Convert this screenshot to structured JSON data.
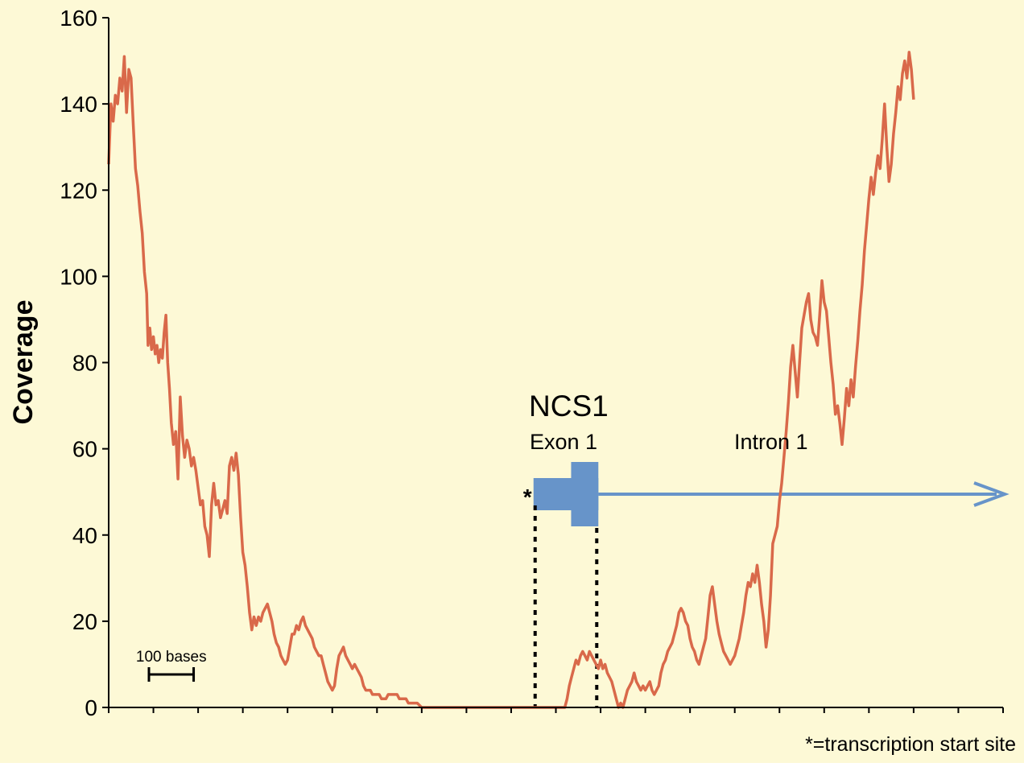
{
  "colors": {
    "background": "#fdf9d6",
    "coverage_line": "#d9694a",
    "gene_model": "#6794c9",
    "axis": "#000000"
  },
  "chart_data": {
    "type": "line",
    "ylabel": "Coverage",
    "ylim": [
      0,
      160
    ],
    "yticks": [
      0,
      20,
      40,
      60,
      80,
      100,
      120,
      140,
      160
    ],
    "x_unit": "bases",
    "xlim": [
      0,
      2000
    ],
    "x_tick_interval": 100,
    "grid": false,
    "scale_bar": {
      "label": "100 bases",
      "length": 100
    },
    "annotations": {
      "gene": "NCS1",
      "exon_label": "Exon 1",
      "intron_label": "Intron 1",
      "tss_marker": "*",
      "footnote": "*=transcription start site",
      "tss_x": 950,
      "exon_end_x": 1095
    },
    "series": [
      {
        "points": [
          [
            0,
            126
          ],
          [
            5,
            140
          ],
          [
            10,
            136
          ],
          [
            15,
            142
          ],
          [
            20,
            140
          ],
          [
            25,
            146
          ],
          [
            30,
            143
          ],
          [
            35,
            151
          ],
          [
            40,
            138
          ],
          [
            45,
            148
          ],
          [
            50,
            146
          ],
          [
            55,
            135
          ],
          [
            60,
            125
          ],
          [
            65,
            121
          ],
          [
            70,
            115
          ],
          [
            75,
            110
          ],
          [
            80,
            101
          ],
          [
            85,
            96
          ],
          [
            88,
            84
          ],
          [
            92,
            88
          ],
          [
            96,
            83
          ],
          [
            100,
            86
          ],
          [
            104,
            82
          ],
          [
            108,
            84
          ],
          [
            112,
            80
          ],
          [
            116,
            83
          ],
          [
            120,
            81
          ],
          [
            124,
            87
          ],
          [
            128,
            91
          ],
          [
            132,
            80
          ],
          [
            136,
            74
          ],
          [
            140,
            66
          ],
          [
            145,
            61
          ],
          [
            150,
            64
          ],
          [
            155,
            53
          ],
          [
            160,
            72
          ],
          [
            165,
            63
          ],
          [
            170,
            58
          ],
          [
            175,
            62
          ],
          [
            180,
            60
          ],
          [
            185,
            56
          ],
          [
            190,
            58
          ],
          [
            195,
            55
          ],
          [
            200,
            51
          ],
          [
            205,
            47
          ],
          [
            210,
            48
          ],
          [
            215,
            42
          ],
          [
            220,
            40
          ],
          [
            225,
            35
          ],
          [
            230,
            47
          ],
          [
            235,
            52
          ],
          [
            240,
            47
          ],
          [
            245,
            48
          ],
          [
            250,
            44
          ],
          [
            255,
            46
          ],
          [
            260,
            48
          ],
          [
            265,
            45
          ],
          [
            270,
            56
          ],
          [
            275,
            58
          ],
          [
            280,
            55
          ],
          [
            285,
            59
          ],
          [
            290,
            54
          ],
          [
            295,
            44
          ],
          [
            300,
            36
          ],
          [
            305,
            33
          ],
          [
            310,
            28
          ],
          [
            315,
            22
          ],
          [
            320,
            18
          ],
          [
            325,
            21
          ],
          [
            330,
            19
          ],
          [
            335,
            21
          ],
          [
            340,
            20
          ],
          [
            345,
            22
          ],
          [
            350,
            23
          ],
          [
            355,
            24
          ],
          [
            360,
            22
          ],
          [
            365,
            20
          ],
          [
            370,
            17
          ],
          [
            375,
            15
          ],
          [
            380,
            14
          ],
          [
            385,
            12
          ],
          [
            390,
            11
          ],
          [
            395,
            10
          ],
          [
            400,
            11
          ],
          [
            405,
            14
          ],
          [
            410,
            17
          ],
          [
            415,
            17
          ],
          [
            420,
            19
          ],
          [
            425,
            18
          ],
          [
            430,
            20
          ],
          [
            435,
            21
          ],
          [
            440,
            19
          ],
          [
            445,
            18
          ],
          [
            450,
            17
          ],
          [
            455,
            16
          ],
          [
            460,
            14
          ],
          [
            465,
            13
          ],
          [
            470,
            12
          ],
          [
            475,
            12
          ],
          [
            480,
            10
          ],
          [
            485,
            8
          ],
          [
            490,
            6
          ],
          [
            495,
            5
          ],
          [
            500,
            4
          ],
          [
            505,
            5
          ],
          [
            510,
            9
          ],
          [
            515,
            12
          ],
          [
            520,
            13
          ],
          [
            525,
            14
          ],
          [
            530,
            12
          ],
          [
            535,
            11
          ],
          [
            540,
            10
          ],
          [
            545,
            9
          ],
          [
            550,
            10
          ],
          [
            555,
            9
          ],
          [
            560,
            8
          ],
          [
            565,
            7
          ],
          [
            570,
            5
          ],
          [
            575,
            4
          ],
          [
            580,
            4
          ],
          [
            585,
            4
          ],
          [
            590,
            3
          ],
          [
            595,
            3
          ],
          [
            600,
            3
          ],
          [
            605,
            3
          ],
          [
            610,
            2
          ],
          [
            615,
            2
          ],
          [
            620,
            2
          ],
          [
            625,
            3
          ],
          [
            630,
            3
          ],
          [
            635,
            3
          ],
          [
            640,
            3
          ],
          [
            645,
            3
          ],
          [
            650,
            2
          ],
          [
            655,
            2
          ],
          [
            660,
            2
          ],
          [
            665,
            2
          ],
          [
            670,
            1
          ],
          [
            675,
            1
          ],
          [
            680,
            1
          ],
          [
            685,
            1
          ],
          [
            690,
            1
          ],
          [
            700,
            0
          ],
          [
            800,
            0
          ],
          [
            840,
            0
          ],
          [
            900,
            0
          ],
          [
            950,
            0
          ],
          [
            1020,
            0
          ],
          [
            1025,
            2
          ],
          [
            1030,
            5
          ],
          [
            1035,
            7
          ],
          [
            1040,
            9
          ],
          [
            1045,
            11
          ],
          [
            1050,
            10
          ],
          [
            1055,
            12
          ],
          [
            1060,
            13
          ],
          [
            1065,
            12
          ],
          [
            1070,
            11
          ],
          [
            1075,
            13
          ],
          [
            1080,
            12
          ],
          [
            1085,
            11
          ],
          [
            1090,
            10
          ],
          [
            1095,
            9
          ],
          [
            1100,
            11
          ],
          [
            1105,
            9
          ],
          [
            1110,
            10
          ],
          [
            1115,
            8
          ],
          [
            1120,
            7
          ],
          [
            1125,
            6
          ],
          [
            1130,
            4
          ],
          [
            1135,
            2
          ],
          [
            1140,
            0
          ],
          [
            1145,
            1
          ],
          [
            1150,
            0
          ],
          [
            1155,
            2
          ],
          [
            1160,
            4
          ],
          [
            1165,
            5
          ],
          [
            1170,
            6
          ],
          [
            1175,
            8
          ],
          [
            1180,
            6
          ],
          [
            1185,
            5
          ],
          [
            1190,
            4
          ],
          [
            1195,
            5
          ],
          [
            1200,
            4
          ],
          [
            1205,
            5
          ],
          [
            1210,
            6
          ],
          [
            1215,
            4
          ],
          [
            1220,
            3
          ],
          [
            1225,
            4
          ],
          [
            1230,
            5
          ],
          [
            1235,
            8
          ],
          [
            1240,
            10
          ],
          [
            1245,
            11
          ],
          [
            1250,
            13
          ],
          [
            1255,
            14
          ],
          [
            1260,
            15
          ],
          [
            1265,
            17
          ],
          [
            1270,
            19
          ],
          [
            1275,
            22
          ],
          [
            1280,
            23
          ],
          [
            1285,
            22
          ],
          [
            1290,
            20
          ],
          [
            1295,
            19
          ],
          [
            1300,
            16
          ],
          [
            1305,
            14
          ],
          [
            1310,
            13
          ],
          [
            1315,
            11
          ],
          [
            1320,
            10
          ],
          [
            1325,
            12
          ],
          [
            1330,
            14
          ],
          [
            1335,
            16
          ],
          [
            1340,
            21
          ],
          [
            1345,
            26
          ],
          [
            1350,
            28
          ],
          [
            1355,
            24
          ],
          [
            1360,
            20
          ],
          [
            1365,
            17
          ],
          [
            1370,
            15
          ],
          [
            1375,
            13
          ],
          [
            1380,
            12
          ],
          [
            1385,
            11
          ],
          [
            1390,
            10
          ],
          [
            1395,
            11
          ],
          [
            1400,
            12
          ],
          [
            1405,
            14
          ],
          [
            1410,
            16
          ],
          [
            1415,
            19
          ],
          [
            1420,
            22
          ],
          [
            1425,
            26
          ],
          [
            1430,
            29
          ],
          [
            1435,
            28
          ],
          [
            1440,
            31
          ],
          [
            1445,
            29
          ],
          [
            1450,
            33
          ],
          [
            1455,
            29
          ],
          [
            1460,
            24
          ],
          [
            1465,
            20
          ],
          [
            1470,
            14
          ],
          [
            1475,
            18
          ],
          [
            1480,
            26
          ],
          [
            1485,
            38
          ],
          [
            1490,
            40
          ],
          [
            1495,
            42
          ],
          [
            1500,
            48
          ],
          [
            1505,
            52
          ],
          [
            1510,
            58
          ],
          [
            1515,
            64
          ],
          [
            1520,
            71
          ],
          [
            1525,
            79
          ],
          [
            1530,
            84
          ],
          [
            1535,
            78
          ],
          [
            1540,
            72
          ],
          [
            1545,
            80
          ],
          [
            1550,
            88
          ],
          [
            1555,
            91
          ],
          [
            1560,
            94
          ],
          [
            1565,
            96
          ],
          [
            1570,
            90
          ],
          [
            1575,
            87
          ],
          [
            1580,
            86
          ],
          [
            1585,
            84
          ],
          [
            1590,
            91
          ],
          [
            1595,
            99
          ],
          [
            1600,
            94
          ],
          [
            1605,
            92
          ],
          [
            1610,
            86
          ],
          [
            1615,
            80
          ],
          [
            1620,
            75
          ],
          [
            1625,
            68
          ],
          [
            1630,
            70
          ],
          [
            1635,
            66
          ],
          [
            1640,
            61
          ],
          [
            1645,
            67
          ],
          [
            1650,
            74
          ],
          [
            1655,
            70
          ],
          [
            1660,
            76
          ],
          [
            1665,
            72
          ],
          [
            1670,
            79
          ],
          [
            1675,
            85
          ],
          [
            1680,
            92
          ],
          [
            1685,
            98
          ],
          [
            1690,
            106
          ],
          [
            1695,
            112
          ],
          [
            1700,
            118
          ],
          [
            1705,
            123
          ],
          [
            1710,
            119
          ],
          [
            1715,
            124
          ],
          [
            1720,
            128
          ],
          [
            1725,
            125
          ],
          [
            1730,
            132
          ],
          [
            1735,
            140
          ],
          [
            1740,
            130
          ],
          [
            1745,
            122
          ],
          [
            1750,
            126
          ],
          [
            1755,
            133
          ],
          [
            1760,
            138
          ],
          [
            1765,
            144
          ],
          [
            1770,
            141
          ],
          [
            1775,
            147
          ],
          [
            1780,
            150
          ],
          [
            1785,
            146
          ],
          [
            1790,
            152
          ],
          [
            1795,
            148
          ],
          [
            1800,
            141
          ]
        ]
      }
    ]
  }
}
